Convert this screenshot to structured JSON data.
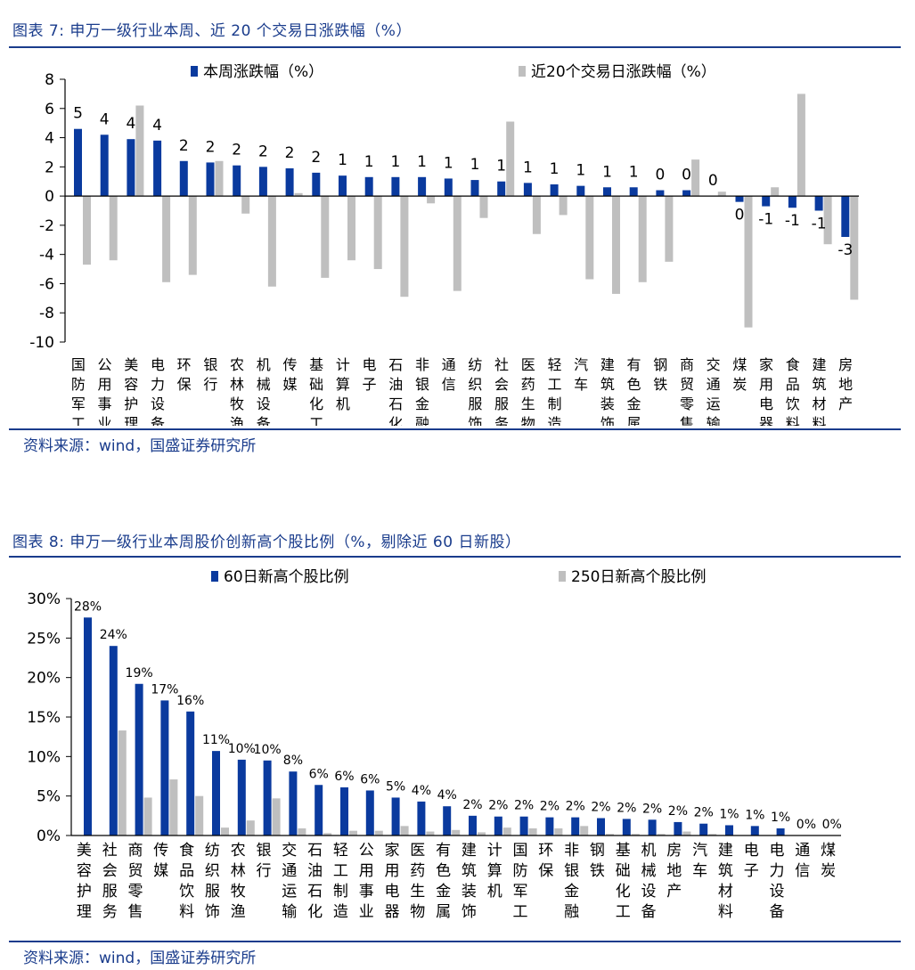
{
  "colors": {
    "primary": "#0a3a9e",
    "secondary": "#bfbfbf",
    "title": "#1a3c8c"
  },
  "figure7": {
    "title": "图表 7:  申万一级行业本周、近 20 个交易日涨跌幅（%）",
    "source": "资料来源：wind，国盛证券研究所",
    "chart_data": {
      "type": "bar",
      "title": "",
      "categories": [
        "国防军工",
        "公用事业",
        "美容护理",
        "电力设备",
        "环保",
        "银行",
        "农林牧渔",
        "机械设备",
        "传媒",
        "基础化工",
        "计算机",
        "电子",
        "石油石化",
        "非银金融",
        "通信",
        "纺织服饰",
        "社会服务",
        "医药生物",
        "轻工制造",
        "汽车",
        "建筑装饰",
        "有色金属",
        "钢铁",
        "商贸零售",
        "交通运输",
        "煤炭",
        "家用电器",
        "食品饮料",
        "建筑材料",
        "房地产"
      ],
      "series": [
        {
          "name": "本周涨跌幅（%）",
          "values": [
            4.6,
            4.2,
            3.9,
            3.8,
            2.4,
            2.3,
            2.1,
            2.0,
            1.9,
            1.6,
            1.4,
            1.3,
            1.3,
            1.3,
            1.2,
            1.1,
            1.0,
            0.9,
            0.8,
            0.7,
            0.6,
            0.6,
            0.4,
            0.4,
            0.0,
            -0.4,
            -0.7,
            -0.8,
            -1.0,
            -2.8
          ]
        },
        {
          "name": "近20个交易日涨跌幅（%）",
          "values": [
            -4.7,
            -4.4,
            6.2,
            -5.9,
            -5.4,
            2.4,
            -1.2,
            -6.2,
            0.2,
            -5.6,
            -4.4,
            -5.0,
            -6.9,
            -0.5,
            -6.5,
            -1.5,
            5.1,
            -2.6,
            -1.3,
            -5.7,
            -6.7,
            -5.9,
            -4.5,
            2.5,
            0.3,
            -9.0,
            0.6,
            7.0,
            -3.3,
            -7.1
          ]
        }
      ],
      "data_labels": [
        "5",
        "4",
        "4",
        "4",
        "2",
        "2",
        "2",
        "2",
        "2",
        "2",
        "1",
        "1",
        "1",
        "1",
        "1",
        "1",
        "1",
        "1",
        "1",
        "1",
        "1",
        "1",
        "0",
        "0",
        "0",
        "0",
        "-1",
        "-1",
        "-1",
        "-3"
      ],
      "ylim": [
        -10,
        8
      ],
      "yticks": [
        8,
        6,
        4,
        2,
        0,
        -2,
        -4,
        -6,
        -8,
        -10
      ],
      "ytick_labels": [
        "8",
        "6",
        "4",
        "2",
        "0",
        "-2",
        "-4",
        "-6",
        "-8",
        "-10"
      ],
      "xlabel": "",
      "ylabel": "",
      "legend": "top"
    }
  },
  "figure8": {
    "title": "图表 8:  申万一级行业本周股价创新高个股比例（%，剔除近 60 日新股）",
    "source": "资料来源：wind，国盛证券研究所",
    "chart_data": {
      "type": "bar",
      "title": "",
      "categories": [
        "美容护理",
        "社会服务",
        "商贸零售",
        "传媒",
        "食品饮料",
        "纺织服饰",
        "农林牧渔",
        "银行",
        "交通运输",
        "石油石化",
        "轻工制造",
        "公用事业",
        "家用电器",
        "医药生物",
        "有色金属",
        "建筑装饰",
        "计算机",
        "国防军工",
        "环保",
        "非银金融",
        "钢铁",
        "基础化工",
        "机械设备",
        "房地产",
        "汽车",
        "建筑材料",
        "电子",
        "电力设备",
        "通信",
        "煤炭"
      ],
      "series": [
        {
          "name": "60日新高个股比例",
          "values": [
            27.6,
            24.0,
            19.2,
            17.1,
            15.7,
            10.7,
            9.6,
            9.5,
            8.1,
            6.4,
            6.1,
            5.7,
            4.8,
            4.3,
            3.7,
            2.5,
            2.4,
            2.4,
            2.3,
            2.3,
            2.2,
            2.1,
            2.0,
            1.7,
            1.5,
            1.3,
            1.2,
            0.9,
            0.0,
            0.0
          ]
        },
        {
          "name": "250日新高个股比例",
          "values": [
            0.0,
            13.3,
            4.8,
            7.1,
            5.0,
            1.0,
            1.9,
            4.7,
            0.9,
            0.3,
            0.6,
            0.6,
            1.2,
            0.5,
            0.7,
            0.4,
            1.0,
            0.9,
            0.9,
            1.2,
            0.2,
            0.2,
            0.2,
            0.5,
            0.2,
            0.0,
            0.0,
            0.0,
            0.0,
            0.0
          ]
        }
      ],
      "data_labels": [
        "28%",
        "24%",
        "19%",
        "17%",
        "16%",
        "11%",
        "10%",
        "10%",
        "8%",
        "6%",
        "6%",
        "6%",
        "5%",
        "4%",
        "4%",
        "2%",
        "2%",
        "2%",
        "2%",
        "2%",
        "2%",
        "2%",
        "2%",
        "2%",
        "2%",
        "1%",
        "1%",
        "1%",
        "0%",
        "0%"
      ],
      "ylim": [
        0,
        30
      ],
      "yticks": [
        30,
        25,
        20,
        15,
        10,
        5,
        0
      ],
      "ytick_labels": [
        "30%",
        "25%",
        "20%",
        "15%",
        "10%",
        "5%",
        "0%"
      ],
      "xlabel": "",
      "ylabel": "",
      "legend": "top"
    }
  }
}
